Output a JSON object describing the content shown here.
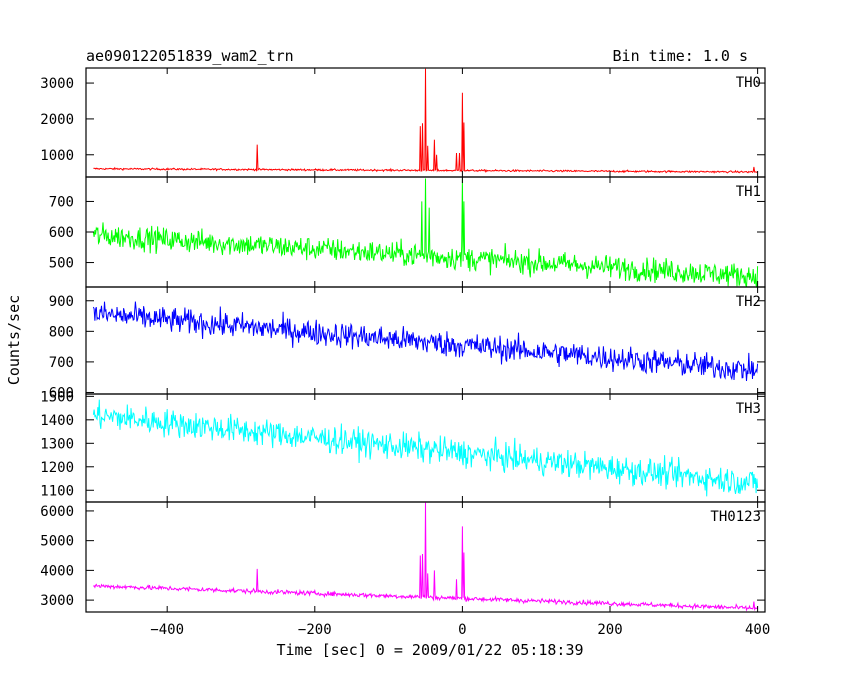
{
  "header": {
    "title": "ae090122051839_wam2_trn",
    "bin_time": "Bin time: 1.0 s"
  },
  "axes": {
    "xlabel": "Time [sec] 0 = 2009/01/22 05:18:39",
    "ylabel": "Counts/sec",
    "xlim": [
      -510,
      410
    ],
    "xticks": [
      -400,
      -200,
      0,
      200,
      400
    ],
    "xtick_labels": [
      "−400",
      "−200",
      "0",
      "200",
      "400"
    ]
  },
  "chart_data": {
    "type": "line",
    "title": "ae090122051839_wam2_trn",
    "xlabel": "Time [sec] 0 = 2009/01/22 05:18:39",
    "ylabel": "Counts/sec",
    "bin_time_s": 1.0,
    "x_range": [
      -500,
      400
    ],
    "grid": false,
    "series": [
      {
        "name": "TH0",
        "color": "#ff0000",
        "ylim": [
          380,
          3420
        ],
        "yticks": [
          1000,
          2000,
          3000
        ],
        "baseline_start": 610,
        "baseline_end": 520,
        "noise": 18,
        "spikes": [
          {
            "x": -278,
            "y": 1280
          },
          {
            "x": -57,
            "y": 1800
          },
          {
            "x": -54,
            "y": 1880
          },
          {
            "x": -50,
            "y": 3400
          },
          {
            "x": -47,
            "y": 1250
          },
          {
            "x": -38,
            "y": 1420
          },
          {
            "x": -35,
            "y": 1000
          },
          {
            "x": -8,
            "y": 1050
          },
          {
            "x": -4,
            "y": 1050
          },
          {
            "x": 0,
            "y": 2730
          },
          {
            "x": 2,
            "y": 1900
          },
          {
            "x": 395,
            "y": 660
          }
        ]
      },
      {
        "name": "TH1",
        "color": "#00ff00",
        "ylim": [
          420,
          780
        ],
        "yticks": [
          500,
          600,
          700
        ],
        "baseline_start": 590,
        "baseline_end": 455,
        "noise": 28,
        "spikes": [
          {
            "x": -55,
            "y": 700
          },
          {
            "x": -50,
            "y": 775
          },
          {
            "x": -45,
            "y": 680
          },
          {
            "x": 0,
            "y": 775
          },
          {
            "x": 2,
            "y": 700
          }
        ]
      },
      {
        "name": "TH2",
        "color": "#0000ff",
        "ylim": [
          595,
          945
        ],
        "yticks": [
          600,
          700,
          800,
          900
        ],
        "baseline_start": 858,
        "baseline_end": 672,
        "noise": 30,
        "spikes": []
      },
      {
        "name": "TH3",
        "color": "#00ffff",
        "ylim": [
          1050,
          1510
        ],
        "yticks": [
          1100,
          1200,
          1300,
          1400,
          1500
        ],
        "baseline_start": 1420,
        "baseline_end": 1130,
        "noise": 42,
        "spikes": []
      },
      {
        "name": "TH0123",
        "color": "#ff00ff",
        "ylim": [
          2600,
          6300
        ],
        "yticks": [
          3000,
          4000,
          5000,
          6000
        ],
        "baseline_start": 3480,
        "baseline_end": 2720,
        "noise": 55,
        "spikes": [
          {
            "x": -278,
            "y": 4050
          },
          {
            "x": -57,
            "y": 4500
          },
          {
            "x": -54,
            "y": 4550
          },
          {
            "x": -50,
            "y": 6280
          },
          {
            "x": -47,
            "y": 3900
          },
          {
            "x": -38,
            "y": 4000
          },
          {
            "x": -8,
            "y": 3700
          },
          {
            "x": 0,
            "y": 5480
          },
          {
            "x": 2,
            "y": 4600
          },
          {
            "x": 395,
            "y": 2950
          }
        ]
      }
    ]
  }
}
